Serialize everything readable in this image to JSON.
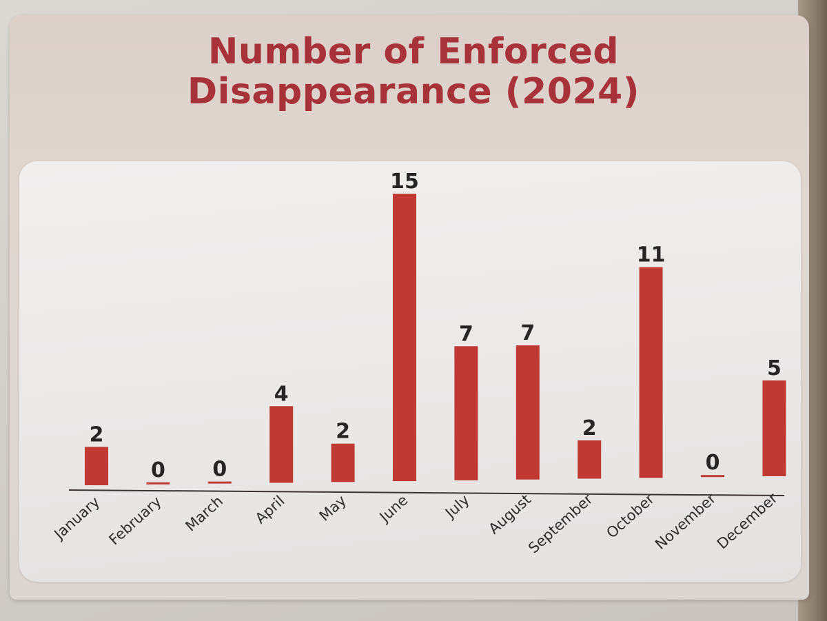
{
  "chart_data": {
    "type": "bar",
    "title": "Number of Enforced Disappearance (2024)",
    "title_lines": [
      "Number of Enforced",
      "Disappearance (2024)"
    ],
    "categories": [
      "January",
      "February",
      "March",
      "April",
      "May",
      "June",
      "July",
      "August",
      "September",
      "October",
      "November",
      "December"
    ],
    "values": [
      2,
      0,
      0,
      4,
      2,
      15,
      7,
      7,
      2,
      11,
      0,
      5
    ],
    "ylim": [
      0,
      15
    ],
    "grid": false,
    "legend": "none",
    "bar_color": "#c03a33",
    "title_color": "#a8323a"
  }
}
